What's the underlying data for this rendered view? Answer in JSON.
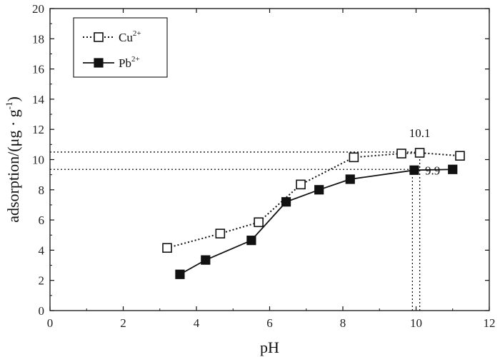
{
  "chart_data": {
    "type": "line",
    "xlabel": "pH",
    "ylabel": "adsorption/(μg · g",
    "ylabel_sup": "-1",
    "ylabel_close": ")",
    "xlim": [
      0,
      12
    ],
    "ylim": [
      0,
      20
    ],
    "xticks": [
      0,
      2,
      4,
      6,
      8,
      10,
      12
    ],
    "yticks": [
      0,
      2,
      4,
      6,
      8,
      10,
      12,
      14,
      16,
      18,
      20
    ],
    "series": [
      {
        "name": "Cu",
        "sup": "2+",
        "marker": "open-square",
        "line": "dotted",
        "color": "#111111",
        "x": [
          3.2,
          4.65,
          5.7,
          6.85,
          8.3,
          9.6,
          10.1,
          11.2
        ],
        "y": [
          4.15,
          5.1,
          5.85,
          8.35,
          10.15,
          10.4,
          10.45,
          10.25
        ]
      },
      {
        "name": "Pb",
        "sup": "2+",
        "marker": "filled-square",
        "line": "solid",
        "color": "#111111",
        "x": [
          3.55,
          4.25,
          5.5,
          6.45,
          7.35,
          8.2,
          9.95,
          11.0
        ],
        "y": [
          2.4,
          3.35,
          4.65,
          7.2,
          8.0,
          8.7,
          9.3,
          9.35
        ]
      }
    ],
    "reference_lines": [
      {
        "name": "cu-max-horizontal",
        "orientation": "horizontal",
        "value": 10.5,
        "from": 0,
        "to": 10.1
      },
      {
        "name": "pb-max-horizontal",
        "orientation": "horizontal",
        "value": 9.35,
        "from": 0,
        "to": 9.9
      },
      {
        "name": "cu-max-vertical",
        "orientation": "vertical",
        "value": 10.1,
        "from": 0,
        "to": 10.5
      },
      {
        "name": "pb-max-vertical",
        "orientation": "vertical",
        "value": 9.9,
        "from": 0,
        "to": 9.35
      }
    ],
    "annotations": [
      {
        "text": "10.1",
        "x": 10.1,
        "y": 11.5
      },
      {
        "text": "9.9",
        "x": 10.45,
        "y": 9.0
      }
    ],
    "legend_position": "top-left",
    "grid": false
  }
}
